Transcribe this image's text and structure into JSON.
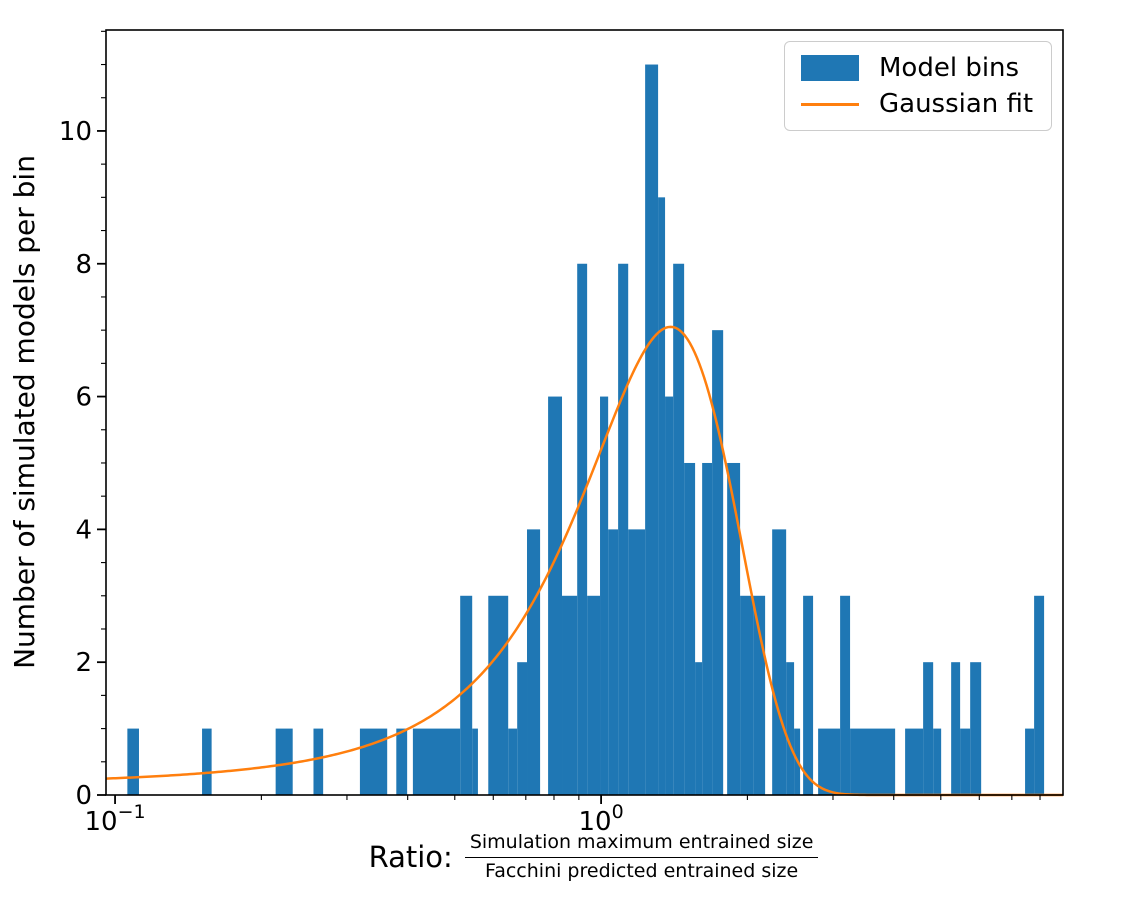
{
  "chart_data": {
    "type": "bar",
    "subtype": "histogram-with-fit",
    "ylabel": "Number of simulated models per bin",
    "xlabel_prefix": "Ratio:",
    "xlabel_numerator": "Simulation maximum entrained size",
    "xlabel_denominator": "Facchini predicted entrained size",
    "x_scale": "log",
    "xlim": [
      0.0958,
      8.92
    ],
    "ylim": [
      0,
      11.52
    ],
    "grid": false,
    "legend_position": "upper right",
    "x_major_ticks": [
      {
        "value": 0.1,
        "base": "10",
        "exp": "−1"
      },
      {
        "value": 1.0,
        "base": "10",
        "exp": "0"
      }
    ],
    "x_minor_ticks": [
      0.2,
      0.3,
      0.4,
      0.5,
      0.6,
      0.7,
      0.8,
      0.9,
      2,
      3,
      4,
      5,
      6,
      7,
      8
    ],
    "y_major_ticks": [
      0,
      2,
      4,
      6,
      8,
      10
    ],
    "y_minor_step": 0.5,
    "series": [
      {
        "name": "Model bins",
        "type": "bar",
        "color": "#1f77b4"
      },
      {
        "name": "Gaussian fit",
        "type": "line",
        "color": "#ff7f0e"
      }
    ],
    "bars": [
      [
        0.106,
        0.112,
        1
      ],
      [
        0.151,
        0.158,
        1
      ],
      [
        0.214,
        0.232,
        1
      ],
      [
        0.256,
        0.268,
        1
      ],
      [
        0.319,
        0.363,
        1
      ],
      [
        0.379,
        0.399,
        1
      ],
      [
        0.41,
        0.513,
        1
      ],
      [
        0.513,
        0.543,
        3
      ],
      [
        0.543,
        0.558,
        1
      ],
      [
        0.586,
        0.644,
        3
      ],
      [
        0.644,
        0.672,
        1
      ],
      [
        0.672,
        0.704,
        2
      ],
      [
        0.704,
        0.749,
        4
      ],
      [
        0.778,
        0.831,
        6
      ],
      [
        0.831,
        0.893,
        3
      ],
      [
        0.893,
        0.936,
        8
      ],
      [
        0.936,
        0.995,
        3
      ],
      [
        0.995,
        1.034,
        6
      ],
      [
        1.034,
        1.084,
        4
      ],
      [
        1.084,
        1.137,
        8
      ],
      [
        1.137,
        1.232,
        4
      ],
      [
        1.232,
        1.31,
        11
      ],
      [
        1.31,
        1.354,
        9
      ],
      [
        1.354,
        1.407,
        6
      ],
      [
        1.407,
        1.482,
        8
      ],
      [
        1.482,
        1.561,
        5
      ],
      [
        1.561,
        1.614,
        2
      ],
      [
        1.614,
        1.692,
        5
      ],
      [
        1.692,
        1.783,
        7
      ],
      [
        1.817,
        1.932,
        5
      ],
      [
        1.932,
        2.055,
        3
      ],
      [
        2.055,
        2.175,
        3
      ],
      [
        2.249,
        2.403,
        4
      ],
      [
        2.403,
        2.495,
        2
      ],
      [
        2.495,
        2.567,
        1
      ],
      [
        2.604,
        2.73,
        3
      ],
      [
        2.796,
        3.103,
        1
      ],
      [
        3.103,
        3.253,
        3
      ],
      [
        3.253,
        4.027,
        1
      ],
      [
        4.222,
        4.598,
        1
      ],
      [
        4.598,
        4.822,
        2
      ],
      [
        4.822,
        5.008,
        1
      ],
      [
        5.251,
        5.479,
        2
      ],
      [
        5.479,
        5.746,
        1
      ],
      [
        5.746,
        6.053,
        2
      ],
      [
        7.453,
        7.779,
        1
      ],
      [
        7.779,
        8.156,
        3
      ]
    ],
    "gaussian_fit": {
      "amplitude": 7.05,
      "mean": 1.39,
      "sigma": 0.5
    }
  },
  "legend": {
    "items": [
      {
        "label": "Model bins",
        "swatch": "patch",
        "color": "#1f77b4"
      },
      {
        "label": "Gaussian fit",
        "swatch": "line",
        "color": "#ff7f0e"
      }
    ]
  }
}
